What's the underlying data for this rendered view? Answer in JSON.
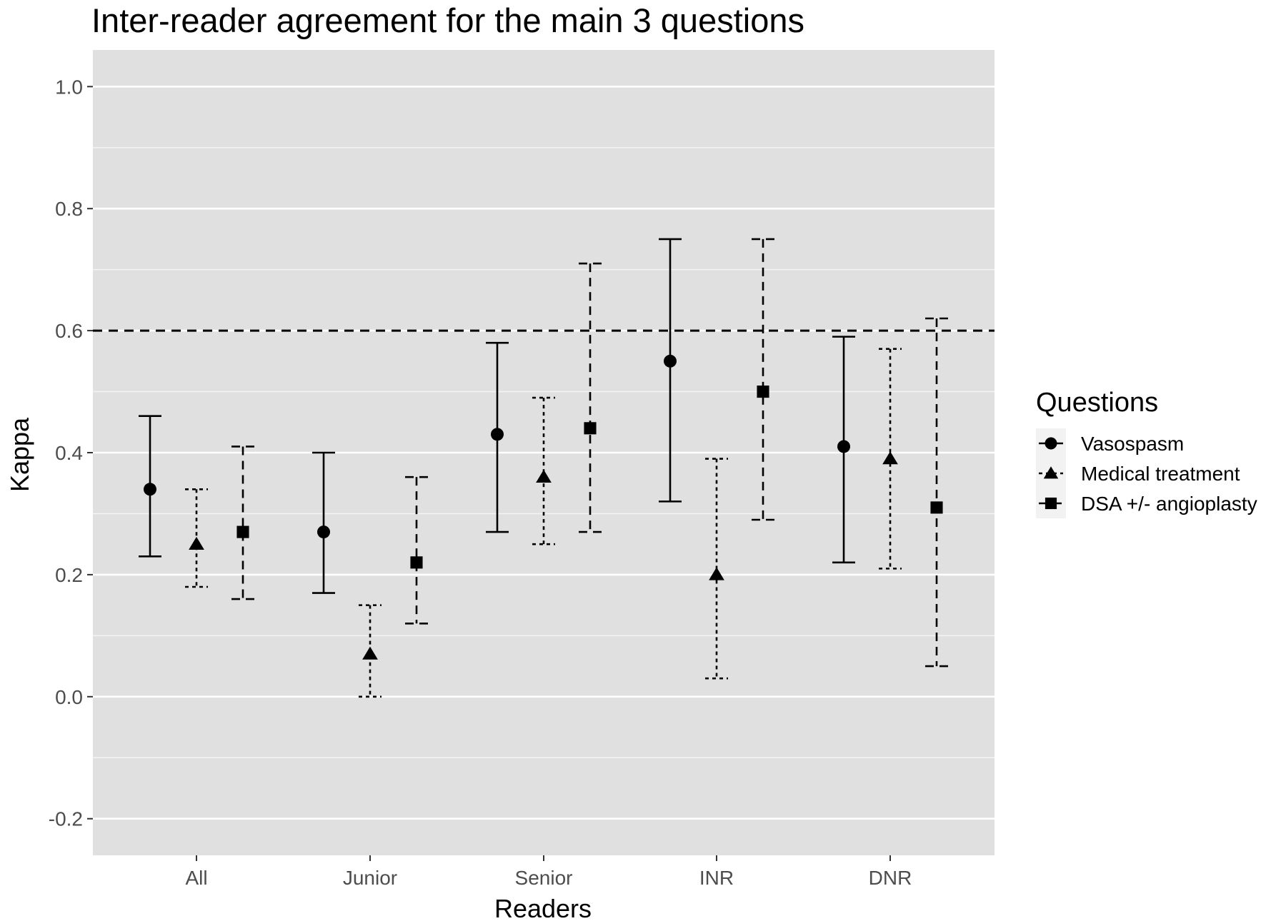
{
  "chart_data": {
    "type": "errorbar",
    "title": "Inter-reader agreement for the main 3 questions",
    "xlabel": "Readers",
    "ylabel": "Kappa",
    "categories": [
      "All",
      "Junior",
      "Senior",
      "INR",
      "DNR"
    ],
    "ylim": [
      -0.26,
      1.06
    ],
    "yticks": [
      -0.2,
      0.0,
      0.2,
      0.4,
      0.6,
      0.8,
      1.0
    ],
    "ytick_labels": [
      "-0.2",
      "0.0",
      "0.2",
      "0.4",
      "0.6",
      "0.8",
      "1.0"
    ],
    "reference_line": {
      "y": 0.6,
      "style": "dashed"
    },
    "grid": true,
    "panel_background": "#e0e0e0",
    "legend": {
      "title": "Questions",
      "position": "right"
    },
    "series": [
      {
        "name": "Vasospasm",
        "marker": "circle",
        "line_style": "solid",
        "values": [
          0.34,
          0.27,
          0.43,
          0.55,
          0.41
        ],
        "lower": [
          0.23,
          0.17,
          0.27,
          0.32,
          0.22
        ],
        "upper": [
          0.46,
          0.4,
          0.58,
          0.75,
          0.59
        ]
      },
      {
        "name": "Medical treatment",
        "marker": "triangle",
        "line_style": "dotted",
        "values": [
          0.25,
          0.07,
          0.36,
          0.2,
          0.39
        ],
        "lower": [
          0.18,
          0.0,
          0.25,
          0.03,
          0.21
        ],
        "upper": [
          0.34,
          0.15,
          0.49,
          0.39,
          0.57
        ]
      },
      {
        "name": "DSA +/- angioplasty",
        "marker": "square",
        "line_style": "dashed",
        "values": [
          0.27,
          0.22,
          0.44,
          0.5,
          0.31
        ],
        "lower": [
          0.16,
          0.12,
          0.27,
          0.29,
          0.05
        ],
        "upper": [
          0.41,
          0.36,
          0.71,
          0.75,
          0.62
        ]
      }
    ]
  }
}
